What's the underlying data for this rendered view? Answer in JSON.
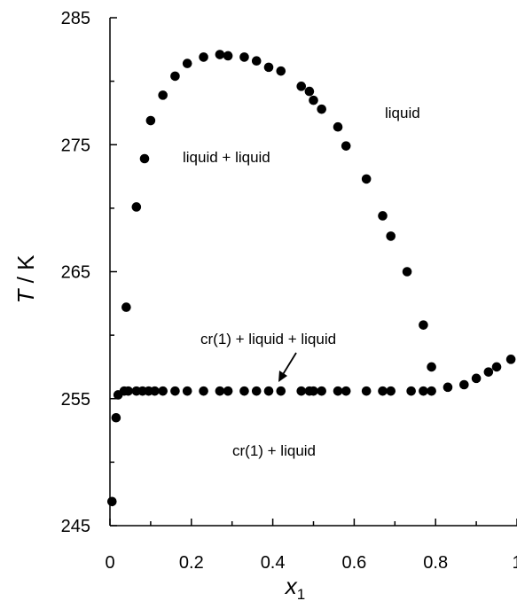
{
  "chart_data": {
    "type": "scatter",
    "xlabel": "x",
    "xlabel_sub": "1",
    "ylabel": "T / K",
    "xlim": [
      0,
      1
    ],
    "ylim": [
      245,
      285
    ],
    "x_ticks": [
      "0",
      "0.2",
      "0.4",
      "0.6",
      "0.8",
      "1"
    ],
    "y_ticks": [
      "245",
      "255",
      "265",
      "275",
      "285"
    ],
    "grid": false,
    "annotations": {
      "liquid": "liquid",
      "liquid_liquid": "liquid + liquid",
      "cr_liquid_liquid": "cr(1) + liquid + liquid",
      "cr_liquid": "cr(1) + liquid"
    },
    "series": [
      {
        "values": [
          [
            0.005,
            246.9
          ],
          [
            0.015,
            253.5
          ],
          [
            0.02,
            255.3
          ],
          [
            0.035,
            255.6
          ],
          [
            0.045,
            255.6
          ],
          [
            0.065,
            255.6
          ],
          [
            0.08,
            255.6
          ],
          [
            0.095,
            255.6
          ],
          [
            0.11,
            255.6
          ],
          [
            0.13,
            255.6
          ],
          [
            0.16,
            255.6
          ],
          [
            0.19,
            255.6
          ],
          [
            0.23,
            255.6
          ],
          [
            0.27,
            255.6
          ],
          [
            0.29,
            255.6
          ],
          [
            0.33,
            255.6
          ],
          [
            0.36,
            255.6
          ],
          [
            0.39,
            255.6
          ],
          [
            0.42,
            255.6
          ],
          [
            0.47,
            255.6
          ],
          [
            0.49,
            255.6
          ],
          [
            0.5,
            255.6
          ],
          [
            0.52,
            255.6
          ],
          [
            0.56,
            255.6
          ],
          [
            0.58,
            255.6
          ],
          [
            0.63,
            255.6
          ],
          [
            0.67,
            255.6
          ],
          [
            0.69,
            255.6
          ],
          [
            0.74,
            255.6
          ],
          [
            0.77,
            255.6
          ],
          [
            0.79,
            255.6
          ],
          [
            0.04,
            262.2
          ],
          [
            0.065,
            270.1
          ],
          [
            0.085,
            273.9
          ],
          [
            0.1,
            276.9
          ],
          [
            0.13,
            278.9
          ],
          [
            0.16,
            280.4
          ],
          [
            0.19,
            281.4
          ],
          [
            0.23,
            281.9
          ],
          [
            0.27,
            282.1
          ],
          [
            0.29,
            282.0
          ],
          [
            0.33,
            281.9
          ],
          [
            0.36,
            281.6
          ],
          [
            0.39,
            281.1
          ],
          [
            0.42,
            280.8
          ],
          [
            0.47,
            279.6
          ],
          [
            0.49,
            279.2
          ],
          [
            0.5,
            278.5
          ],
          [
            0.52,
            277.8
          ],
          [
            0.56,
            276.4
          ],
          [
            0.58,
            274.9
          ],
          [
            0.63,
            272.3
          ],
          [
            0.67,
            269.4
          ],
          [
            0.69,
            267.8
          ],
          [
            0.73,
            265.0
          ],
          [
            0.77,
            260.8
          ],
          [
            0.79,
            257.5
          ],
          [
            0.83,
            255.9
          ],
          [
            0.87,
            256.1
          ],
          [
            0.9,
            256.6
          ],
          [
            0.93,
            257.1
          ],
          [
            0.95,
            257.5
          ],
          [
            0.985,
            258.1
          ]
        ]
      }
    ]
  }
}
